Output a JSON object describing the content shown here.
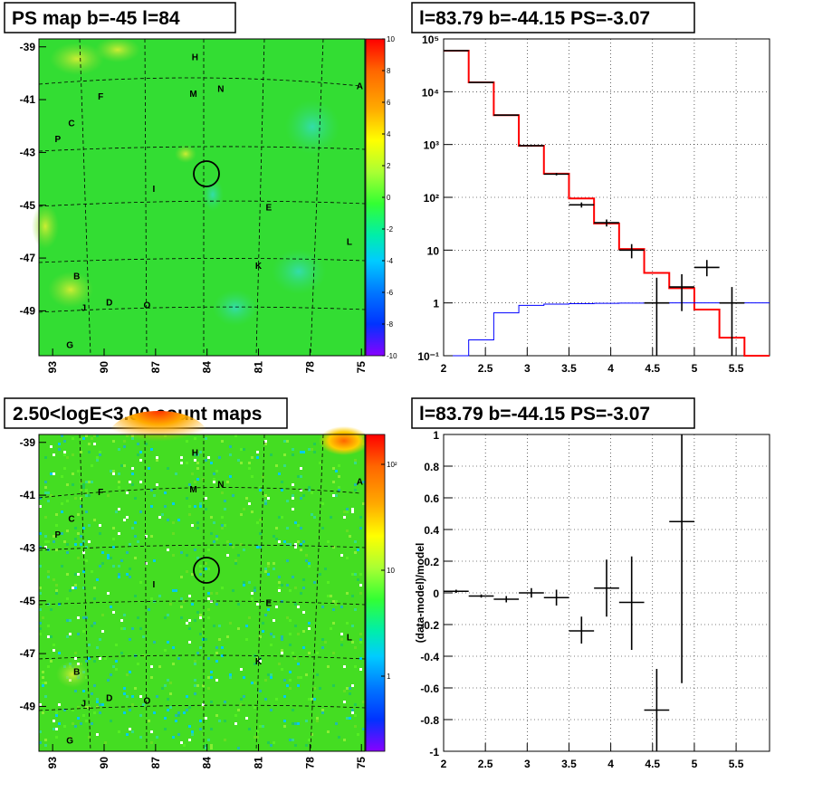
{
  "panels": {
    "map_top": {
      "title": "PS map b=-45 l=84",
      "y_ticks": [
        "-39",
        "-41",
        "-43",
        "-45",
        "-47",
        "-49"
      ],
      "x_ticks": [
        "93",
        "90",
        "87",
        "84",
        "81",
        "78",
        "75"
      ],
      "colorbar_ticks": [
        "10",
        "8",
        "6",
        "4",
        "2",
        "0",
        "-2",
        "-4",
        "-6",
        "-8",
        "-10"
      ],
      "source_labels": [
        {
          "text": "H",
          "l": 84.7,
          "b": -39.5
        },
        {
          "text": "N",
          "l": 83.2,
          "b": -40.7
        },
        {
          "text": "M",
          "l": 84.8,
          "b": -40.9
        },
        {
          "text": "A",
          "l": 75.1,
          "b": -40.6
        },
        {
          "text": "F",
          "l": 90.2,
          "b": -41.0
        },
        {
          "text": "C",
          "l": 91.9,
          "b": -42.0
        },
        {
          "text": "P",
          "l": 92.7,
          "b": -42.6
        },
        {
          "text": "I",
          "l": 87.1,
          "b": -44.5
        },
        {
          "text": "E",
          "l": 80.4,
          "b": -45.2
        },
        {
          "text": "L",
          "l": 75.7,
          "b": -46.5
        },
        {
          "text": "K",
          "l": 81.0,
          "b": -47.4
        },
        {
          "text": "B",
          "l": 91.6,
          "b": -47.8
        },
        {
          "text": "D",
          "l": 89.7,
          "b": -48.8
        },
        {
          "text": "J",
          "l": 91.2,
          "b": -49.0
        },
        {
          "text": "O",
          "l": 87.5,
          "b": -48.9
        },
        {
          "text": "G",
          "l": 92.0,
          "b": -50.4
        }
      ]
    },
    "map_bottom": {
      "title": "2.50<logE<3.00 count maps",
      "y_ticks": [
        "-39",
        "-41",
        "-43",
        "-45",
        "-47",
        "-49"
      ],
      "x_ticks": [
        "93",
        "90",
        "87",
        "84",
        "81",
        "78",
        "75"
      ],
      "colorbar_ticks": [
        "10²",
        "10",
        "1"
      ],
      "source_labels": [
        {
          "text": "H",
          "l": 84.7,
          "b": -39.5
        },
        {
          "text": "N",
          "l": 83.2,
          "b": -40.7
        },
        {
          "text": "M",
          "l": 84.8,
          "b": -40.9
        },
        {
          "text": "A",
          "l": 75.1,
          "b": -40.6
        },
        {
          "text": "F",
          "l": 90.2,
          "b": -41.0
        },
        {
          "text": "C",
          "l": 91.9,
          "b": -42.0
        },
        {
          "text": "P",
          "l": 92.7,
          "b": -42.6
        },
        {
          "text": "I",
          "l": 87.1,
          "b": -44.5
        },
        {
          "text": "E",
          "l": 80.4,
          "b": -45.2
        },
        {
          "text": "L",
          "l": 75.7,
          "b": -46.5
        },
        {
          "text": "K",
          "l": 81.0,
          "b": -47.4
        },
        {
          "text": "B",
          "l": 91.6,
          "b": -47.8
        },
        {
          "text": "D",
          "l": 89.7,
          "b": -48.8
        },
        {
          "text": "J",
          "l": 91.2,
          "b": -49.0
        },
        {
          "text": "O",
          "l": 87.5,
          "b": -48.9
        },
        {
          "text": "G",
          "l": 92.0,
          "b": -50.4
        }
      ]
    },
    "spectrum": {
      "title": "l=83.79 b=-44.15 PS=-3.07"
    },
    "residual": {
      "title": "l=83.79 b=-44.15 PS=-3.07"
    }
  },
  "chart_data": [
    {
      "type": "heatmap",
      "title": "PS map b=-45 l=84",
      "xlim": [
        93.8,
        74.8
      ],
      "ylim": [
        -50.7,
        -38.7
      ],
      "x_ticks": [
        93,
        90,
        87,
        84,
        81,
        78,
        75
      ],
      "y_ticks": [
        -39,
        -41,
        -43,
        -45,
        -47,
        -49
      ],
      "colorbar": {
        "min": -10,
        "max": 10,
        "ticks": [
          10,
          8,
          6,
          4,
          2,
          0,
          -2,
          -4,
          -6,
          -8,
          -10
        ]
      },
      "point_source_circle": {
        "l": 83.79,
        "b": -44.15
      },
      "colors": {
        "background": "#33dd33",
        "contour": "#000000"
      }
    },
    {
      "type": "heatmap",
      "title": "2.50<logE<3.00 count maps",
      "xlim": [
        93.8,
        74.8
      ],
      "ylim": [
        -50.7,
        -38.7
      ],
      "x_ticks": [
        93,
        90,
        87,
        84,
        81,
        78,
        75
      ],
      "y_ticks": [
        -39,
        -41,
        -43,
        -45,
        -47,
        -49
      ],
      "colorbar": {
        "scale": "log",
        "ticks_labels": [
          "10²",
          "10",
          "1"
        ]
      },
      "point_source_circle": {
        "l": 83.79,
        "b": -44.15
      }
    },
    {
      "type": "line",
      "title": "l=83.79 b=-44.15 PS=-3.07",
      "yscale": "log",
      "xlim": [
        2,
        5.9
      ],
      "ylim": [
        0.1,
        100000
      ],
      "x_ticks": [
        "2",
        "2.5",
        "3",
        "3.5",
        "4",
        "4.5",
        "5",
        "5.5"
      ],
      "y_ticks": [
        {
          "v": 0.1,
          "label": "10⁻¹"
        },
        {
          "v": 1,
          "label": "1"
        },
        {
          "v": 10,
          "label": "10"
        },
        {
          "v": 100,
          "label": "10²"
        },
        {
          "v": 1000,
          "label": "10³"
        },
        {
          "v": 10000,
          "label": "10⁴"
        },
        {
          "v": 100000,
          "label": "10⁵"
        }
      ],
      "grid": true,
      "bin_edges": [
        2,
        2.3,
        2.6,
        2.9,
        3.2,
        3.5,
        3.8,
        4.1,
        4.4,
        4.7,
        5.0,
        5.3,
        5.6,
        5.9
      ],
      "series": [
        {
          "color": "#ff0000",
          "style": "step",
          "values": [
            60000,
            15000,
            3600,
            950,
            280,
            95,
            32,
            10.5,
            3.7,
            1.9,
            0.75,
            0.22,
            0.08
          ]
        },
        {
          "color": "#0000ff",
          "style": "step",
          "values": [
            0.1,
            0.2,
            0.65,
            0.9,
            0.95,
            0.97,
            0.98,
            0.99,
            0.99,
            1.0,
            1.0,
            1.0,
            1.0
          ]
        },
        {
          "color": "#000000",
          "style": "errorbar",
          "points": [
            {
              "x": 2.15,
              "y": 60000,
              "xerr": 0.15,
              "ylo": 59500,
              "yhi": 60500
            },
            {
              "x": 2.45,
              "y": 15000,
              "xerr": 0.15,
              "ylo": 14800,
              "yhi": 15200
            },
            {
              "x": 2.75,
              "y": 3600,
              "xerr": 0.15,
              "ylo": 3500,
              "yhi": 3700
            },
            {
              "x": 3.05,
              "y": 950,
              "xerr": 0.15,
              "ylo": 920,
              "yhi": 980
            },
            {
              "x": 3.35,
              "y": 275,
              "xerr": 0.15,
              "ylo": 260,
              "yhi": 290
            },
            {
              "x": 3.65,
              "y": 72,
              "xerr": 0.15,
              "ylo": 64,
              "yhi": 80
            },
            {
              "x": 3.95,
              "y": 33,
              "xerr": 0.15,
              "ylo": 28,
              "yhi": 38
            },
            {
              "x": 4.25,
              "y": 10,
              "xerr": 0.15,
              "ylo": 7,
              "yhi": 13
            },
            {
              "x": 4.55,
              "y": 1,
              "xerr": 0.15,
              "ylo": 0.1,
              "yhi": 3
            },
            {
              "x": 4.85,
              "y": 2,
              "xerr": 0.15,
              "ylo": 0.7,
              "yhi": 3.5
            },
            {
              "x": 5.15,
              "y": 4.7,
              "xerr": 0.15,
              "ylo": 3.2,
              "yhi": 6.5
            },
            {
              "x": 5.45,
              "y": 1,
              "xerr": 0.15,
              "ylo": 0.1,
              "yhi": 2
            }
          ]
        }
      ]
    },
    {
      "type": "scatter",
      "title": "l=83.79 b=-44.15 PS=-3.07",
      "ylabel": "(data-model)/model",
      "xlim": [
        2,
        5.9
      ],
      "ylim": [
        -1,
        1
      ],
      "x_ticks": [
        "2",
        "2.5",
        "3",
        "3.5",
        "4",
        "4.5",
        "5",
        "5.5"
      ],
      "y_ticks": [
        "1",
        "0.8",
        "0.6",
        "0.4",
        "0.2",
        "0",
        "-0.2",
        "-0.4",
        "-0.6",
        "-0.8",
        "-1"
      ],
      "grid": true,
      "points": [
        {
          "x": 2.15,
          "y": 0.01,
          "xerr": 0.15,
          "ylo": 0.0,
          "yhi": 0.02
        },
        {
          "x": 2.45,
          "y": -0.02,
          "xerr": 0.15,
          "ylo": -0.03,
          "yhi": -0.01
        },
        {
          "x": 2.75,
          "y": -0.04,
          "xerr": 0.15,
          "ylo": -0.06,
          "yhi": -0.02
        },
        {
          "x": 3.05,
          "y": 0.0,
          "xerr": 0.15,
          "ylo": -0.03,
          "yhi": 0.03
        },
        {
          "x": 3.35,
          "y": -0.03,
          "xerr": 0.15,
          "ylo": -0.08,
          "yhi": 0.02
        },
        {
          "x": 3.65,
          "y": -0.24,
          "xerr": 0.15,
          "ylo": -0.32,
          "yhi": -0.15
        },
        {
          "x": 3.95,
          "y": 0.03,
          "xerr": 0.15,
          "ylo": -0.15,
          "yhi": 0.21
        },
        {
          "x": 4.25,
          "y": -0.06,
          "xerr": 0.15,
          "ylo": -0.36,
          "yhi": 0.23
        },
        {
          "x": 4.55,
          "y": -0.74,
          "xerr": 0.15,
          "ylo": -1.0,
          "yhi": -0.48
        },
        {
          "x": 4.85,
          "y": 0.45,
          "xerr": 0.15,
          "ylo": -0.57,
          "yhi": 1.0
        }
      ]
    }
  ]
}
